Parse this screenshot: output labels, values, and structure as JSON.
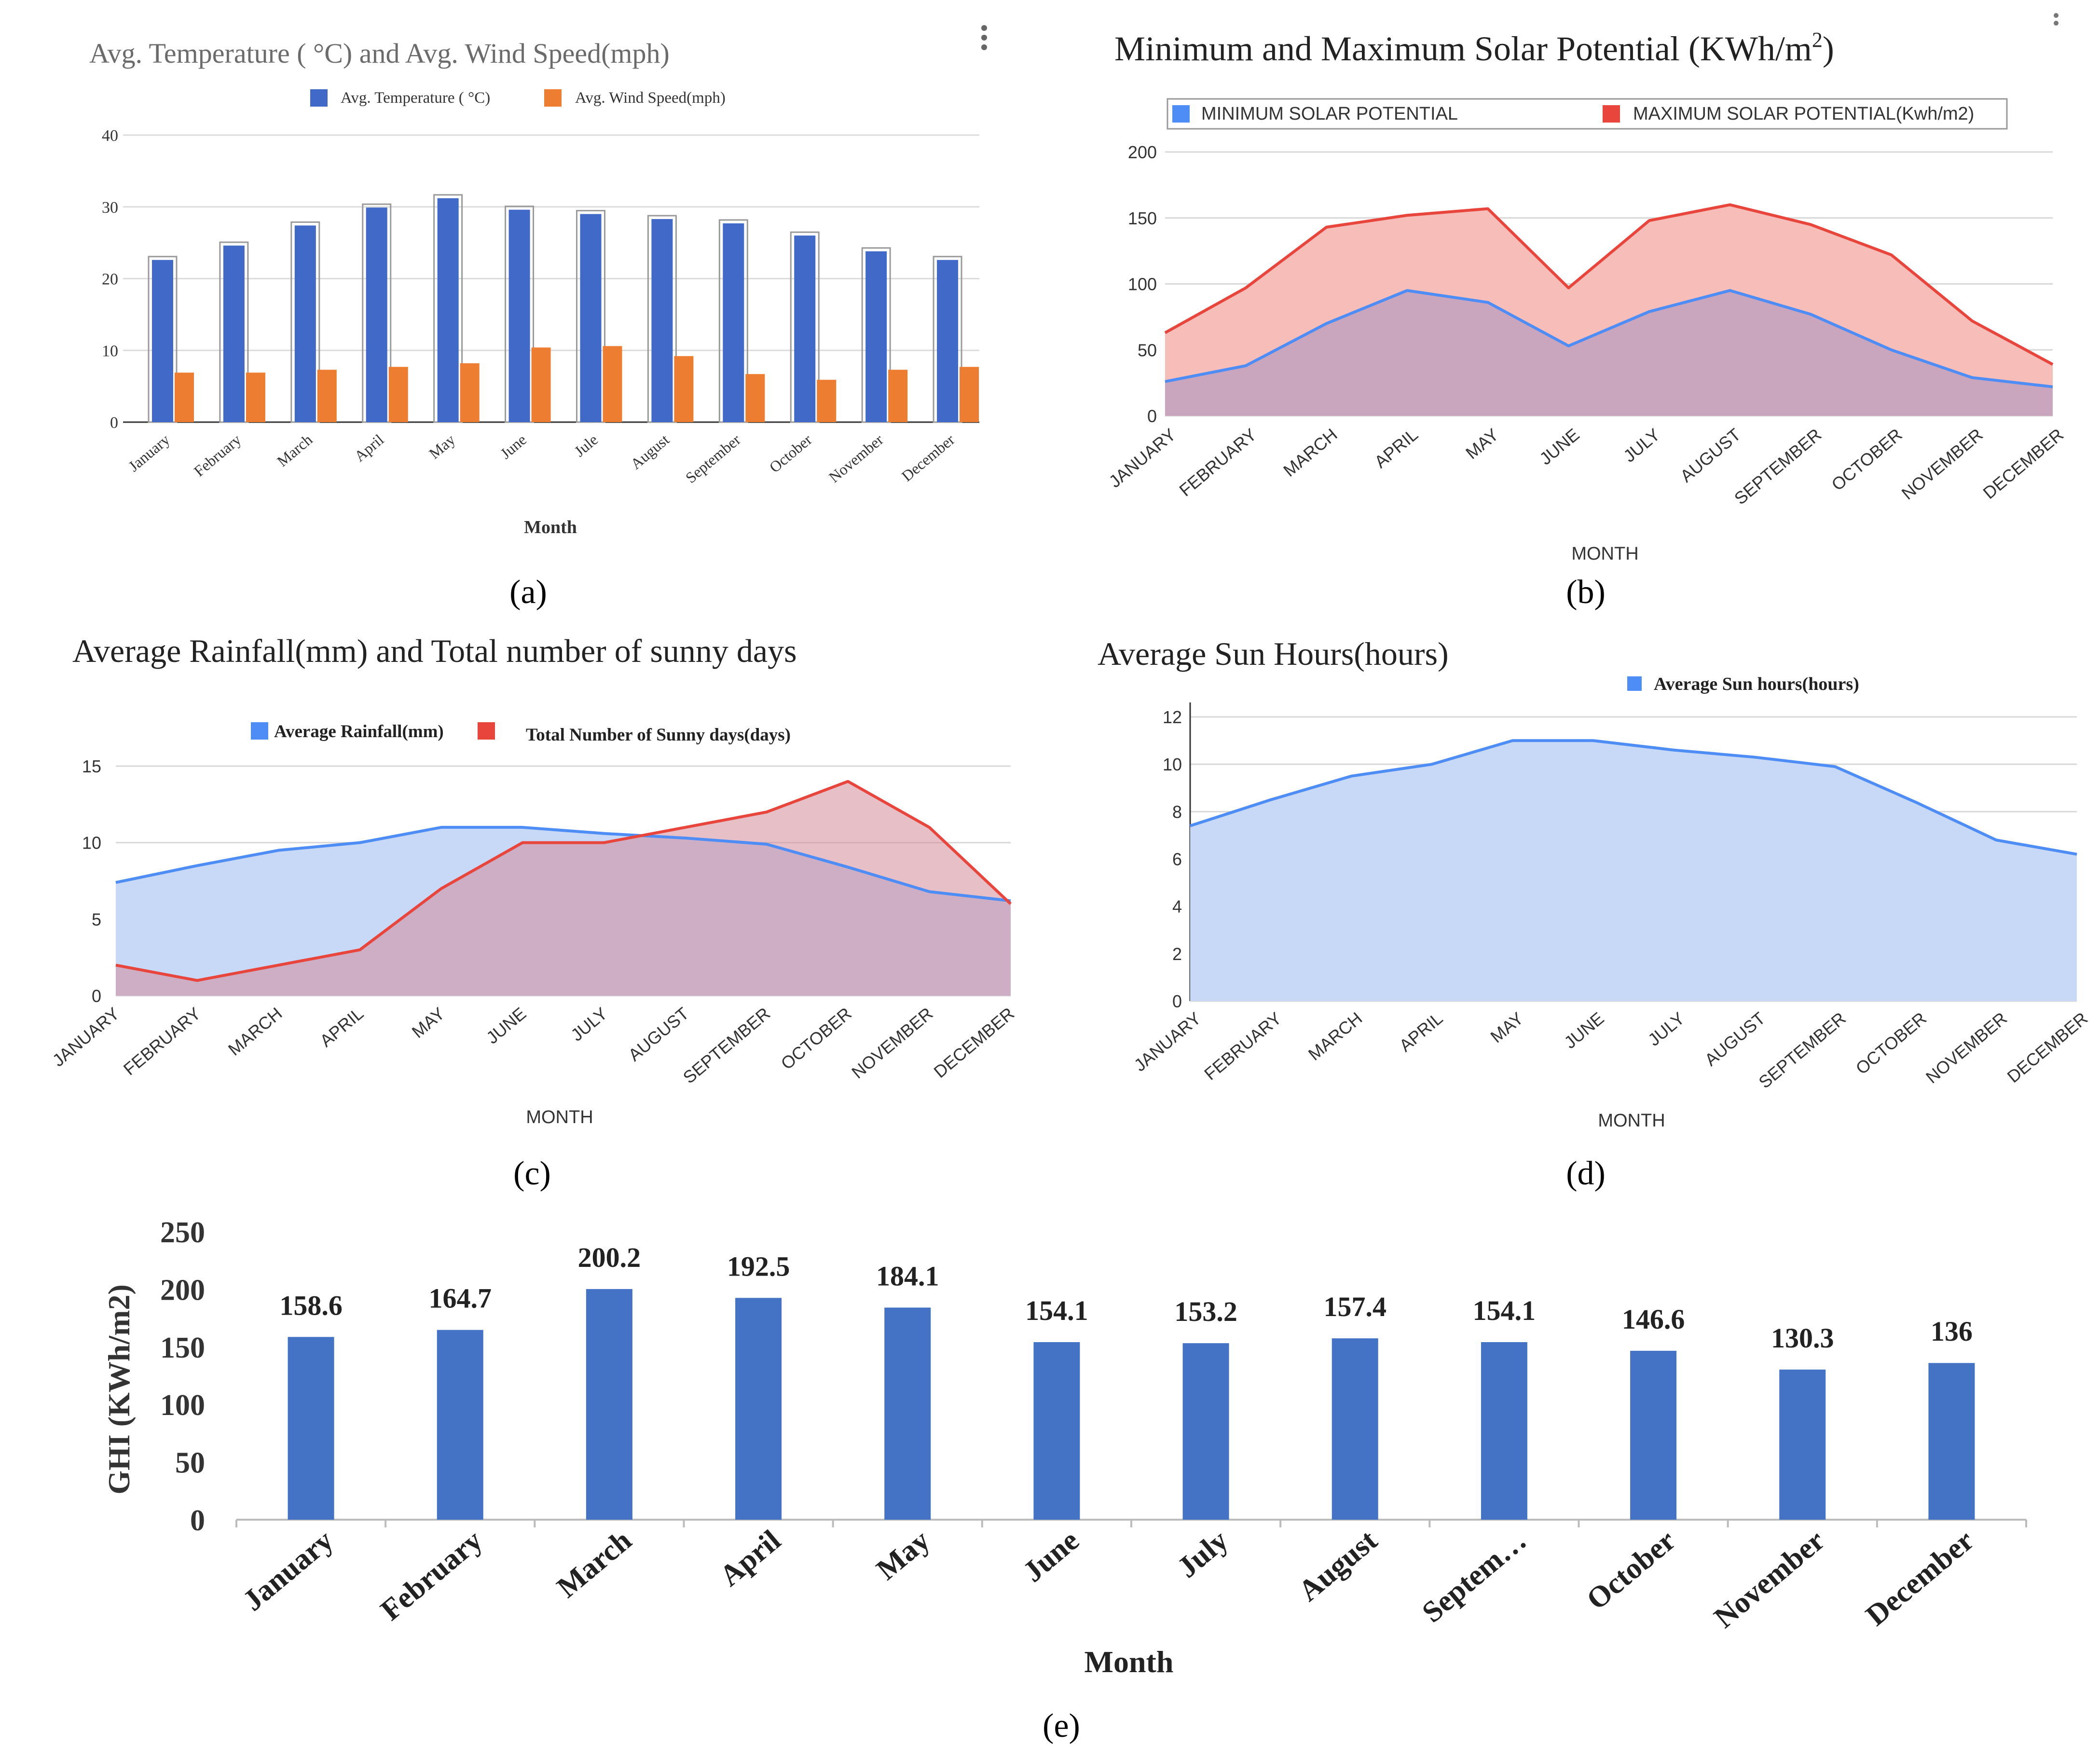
{
  "figure_labels": {
    "a": "(a)",
    "b": "(b)",
    "c": "(c)",
    "d": "(d)",
    "e": "(e)"
  },
  "colors": {
    "blue": "#4169c7",
    "orange": "#ed7d31",
    "red": "#e8453c",
    "lineBlue": "#4d8df5",
    "redFill": "#f7bdb8",
    "blueFill": "#c8d9f8",
    "purpleFill": "#cfa8bd",
    "barE": "#4472c4"
  },
  "chart_data": [
    {
      "id": "a",
      "type": "bar",
      "title": "Avg. Temperature ( °C) and Avg. Wind Speed(mph)",
      "xlabel": "Month",
      "ylabel": "",
      "ylim": [
        0,
        40
      ],
      "yticks": [
        "0",
        "10",
        "20",
        "30",
        "40"
      ],
      "categories": [
        "January",
        "February",
        "March",
        "April",
        "May",
        "June",
        "Jule",
        "August",
        "September",
        "October",
        "November",
        "December"
      ],
      "series": [
        {
          "name": "Avg. Temperature ( °C)",
          "values": [
            22.6,
            24.6,
            27.4,
            29.9,
            31.2,
            29.6,
            29.0,
            28.3,
            27.7,
            26.0,
            23.8,
            22.6
          ]
        },
        {
          "name": "Avg. Wind Speed(mph)",
          "values": [
            6.9,
            6.9,
            7.3,
            7.7,
            8.2,
            10.4,
            10.6,
            9.2,
            6.7,
            5.9,
            7.3,
            7.7
          ]
        }
      ]
    },
    {
      "id": "b",
      "type": "area",
      "title": "Minimum and Maximum Solar Potential (KWh/m",
      "title_sup": "2",
      "title_end": ")",
      "xlabel": "MONTH",
      "ylabel": "",
      "ylim": [
        0,
        200
      ],
      "yticks": [
        "0",
        "50",
        "100",
        "150",
        "200"
      ],
      "categories": [
        "JANUARY",
        "FEBRUARY",
        "MARCH",
        "APRIL",
        "MAY",
        "JUNE",
        "JULY",
        "AUGUST",
        "SEPTEMBER",
        "OCTOBER",
        "NOVEMBER",
        "DECEMBER"
      ],
      "series": [
        {
          "name": "MINIMUM SOLAR POTENTIAL",
          "values": [
            26,
            38,
            70,
            95,
            86,
            53,
            79,
            95,
            77,
            50,
            29,
            22
          ]
        },
        {
          "name": "MAXIMUM SOLAR POTENTIAL(Kwh/m2)",
          "values": [
            63,
            97,
            143,
            152,
            157,
            97,
            148,
            160,
            145,
            122,
            72,
            39
          ]
        }
      ]
    },
    {
      "id": "c",
      "type": "area",
      "title": "Average Rainfall(mm) and Total number of sunny days",
      "xlabel": "MONTH",
      "ylabel": "",
      "ylim": [
        0,
        15
      ],
      "yticks": [
        "0",
        "5",
        "10",
        "15"
      ],
      "categories": [
        "JANUARY",
        "FEBRUARY",
        "MARCH",
        "APRIL",
        "MAY",
        "JUNE",
        "JULY",
        "AUGUST",
        "SEPTEMBER",
        "OCTOBER",
        "NOVEMBER",
        "DECEMBER"
      ],
      "series": [
        {
          "name": "Average Rainfall(mm)",
          "values": [
            7.4,
            8.5,
            9.5,
            10.0,
            11.0,
            11.0,
            10.6,
            10.3,
            9.9,
            8.4,
            6.8,
            6.2
          ]
        },
        {
          "name": "Total Number of Sunny days(days)",
          "values": [
            2,
            1,
            2,
            3,
            7,
            10,
            10,
            11,
            12,
            14,
            11,
            6
          ]
        }
      ]
    },
    {
      "id": "d",
      "type": "area",
      "title": "Average Sun Hours(hours)",
      "xlabel": "MONTH",
      "ylabel": "",
      "ylim": [
        0,
        12
      ],
      "yticks": [
        "0",
        "2",
        "4",
        "6",
        "8",
        "10",
        "12"
      ],
      "categories": [
        "JANUARY",
        "FEBRUARY",
        "MARCH",
        "APRIL",
        "MAY",
        "JUNE",
        "JULY",
        "AUGUST",
        "SEPTEMBER",
        "OCTOBER",
        "NOVEMBER",
        "DECEMBER"
      ],
      "series": [
        {
          "name": "Average Sun hours(hours)",
          "values": [
            7.4,
            8.5,
            9.5,
            10.0,
            11.0,
            11.0,
            10.6,
            10.3,
            9.9,
            8.4,
            6.8,
            6.2
          ]
        }
      ]
    },
    {
      "id": "e",
      "type": "bar",
      "title": "",
      "xlabel": "Month",
      "ylabel": "GHI (KWh/m2)",
      "ylim": [
        0,
        250
      ],
      "yticks": [
        "0",
        "50",
        "100",
        "150",
        "200",
        "250"
      ],
      "categories": [
        "January",
        "February",
        "March",
        "April",
        "May",
        "June",
        "July",
        "August",
        "Septem…",
        "October",
        "November",
        "December"
      ],
      "values": [
        158.6,
        164.7,
        200.2,
        192.5,
        184.1,
        154.1,
        153.2,
        157.4,
        154.1,
        146.6,
        130.3,
        136
      ],
      "data_labels": [
        "158.6",
        "164.7",
        "200.2",
        "192.5",
        "184.1",
        "154.1",
        "153.2",
        "157.4",
        "154.1",
        "146.6",
        "130.3",
        "136"
      ]
    }
  ]
}
